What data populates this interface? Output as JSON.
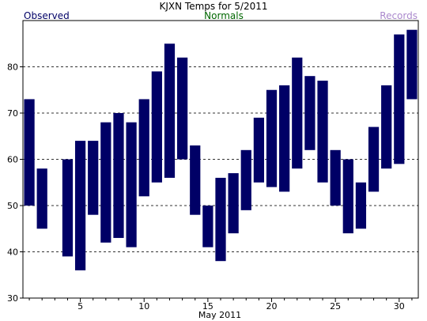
{
  "chart_data": {
    "type": "bar",
    "subtype": "floating-range",
    "title": "KJXN Temps for 5/2011",
    "xlabel": "May 2011",
    "ylabel": "",
    "legend": [
      {
        "label": "Observed",
        "color": "#000066",
        "placement": "top-left"
      },
      {
        "label": "Normals",
        "color": "#006600",
        "placement": "top-center"
      },
      {
        "label": "Records",
        "color": "#aa88cc",
        "placement": "top-right"
      }
    ],
    "xlim": [
      0.5,
      31.5
    ],
    "ylim": [
      30,
      90
    ],
    "yticks": [
      30,
      40,
      50,
      60,
      70,
      80
    ],
    "xticks": [
      5,
      10,
      15,
      20,
      25,
      30
    ],
    "grid": {
      "y": true,
      "style": "dashed"
    },
    "bar_color": "#000066",
    "series": [
      {
        "name": "Observed",
        "days": [
          1,
          2,
          4,
          5,
          6,
          7,
          8,
          9,
          10,
          11,
          12,
          13,
          14,
          15,
          16,
          17,
          18,
          19,
          20,
          21,
          22,
          23,
          24,
          25,
          26,
          27,
          28,
          29,
          30,
          31
        ],
        "high": [
          73,
          58,
          60,
          64,
          64,
          68,
          70,
          68,
          73,
          79,
          85,
          82,
          63,
          50,
          56,
          57,
          62,
          69,
          75,
          76,
          82,
          78,
          77,
          62,
          60,
          55,
          67,
          76,
          87,
          88
        ],
        "low": [
          50,
          45,
          39,
          36,
          48,
          42,
          43,
          41,
          52,
          55,
          56,
          60,
          48,
          41,
          38,
          44,
          49,
          55,
          54,
          53,
          58,
          62,
          55,
          50,
          44,
          45,
          53,
          58,
          59,
          73
        ]
      }
    ]
  }
}
